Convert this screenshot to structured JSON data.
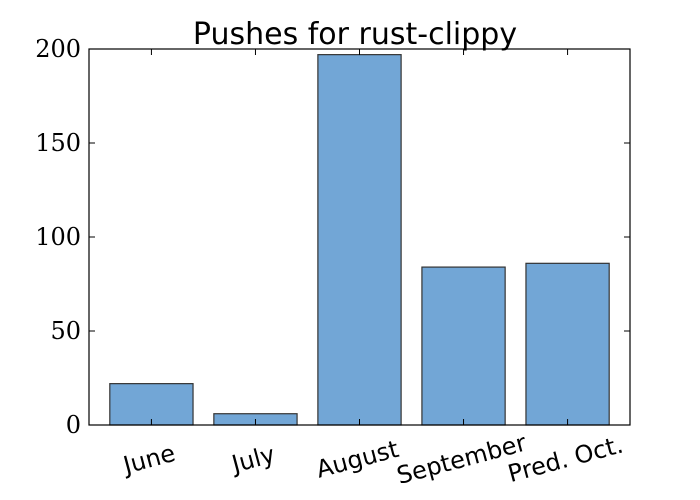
{
  "chart_data": {
    "type": "bar",
    "title": "Pushes for rust-clippy",
    "categories": [
      "June",
      "July",
      "August",
      "September",
      "Pred. Oct."
    ],
    "values": [
      22,
      6,
      197,
      84,
      86
    ],
    "ylim": [
      0,
      200
    ],
    "yticks": [
      0,
      50,
      100,
      150,
      200
    ],
    "xlabel": "",
    "ylabel": "",
    "grid": false,
    "bar_color": "#72a6d6"
  }
}
